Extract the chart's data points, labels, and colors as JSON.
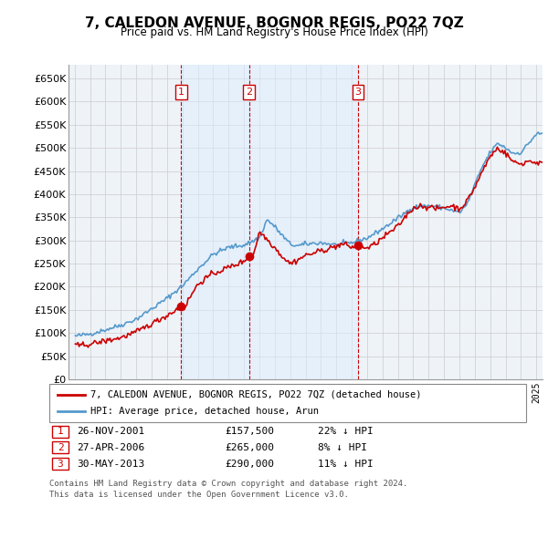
{
  "title": "7, CALEDON AVENUE, BOGNOR REGIS, PO22 7QZ",
  "subtitle": "Price paid vs. HM Land Registry's House Price Index (HPI)",
  "legend_line1": "7, CALEDON AVENUE, BOGNOR REGIS, PO22 7QZ (detached house)",
  "legend_line2": "HPI: Average price, detached house, Arun",
  "table_rows": [
    {
      "num": "1",
      "date": "26-NOV-2001",
      "price": "£157,500",
      "pct": "22% ↓ HPI"
    },
    {
      "num": "2",
      "date": "27-APR-2006",
      "price": "£265,000",
      "pct": "8% ↓ HPI"
    },
    {
      "num": "3",
      "date": "30-MAY-2013",
      "price": "£290,000",
      "pct": "11% ↓ HPI"
    }
  ],
  "footnote1": "Contains HM Land Registry data © Crown copyright and database right 2024.",
  "footnote2": "This data is licensed under the Open Government Licence v3.0.",
  "house_color": "#cc0000",
  "hpi_color": "#5599cc",
  "hpi_fill_color": "#ddeeff",
  "marker_color": "#cc0000",
  "vline_fill_color": "#ddeeff",
  "sale_dates": [
    2001.92,
    2006.33,
    2013.42
  ],
  "sale_prices": [
    157500,
    265000,
    290000
  ],
  "ylim": [
    0,
    680000
  ],
  "yticks": [
    0,
    50000,
    100000,
    150000,
    200000,
    250000,
    300000,
    350000,
    400000,
    450000,
    500000,
    550000,
    600000,
    650000
  ],
  "grid_color": "#cccccc",
  "background_color": "#ffffff",
  "plot_bg_color": "#eef3f8"
}
